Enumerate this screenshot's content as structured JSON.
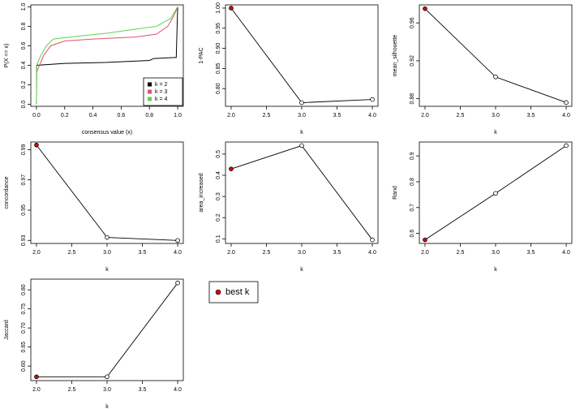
{
  "chart_data": [
    {
      "type": "ecdf",
      "x_label": "consensus value (x)",
      "y_label": "P(X <= x)",
      "xlim": [
        -0.04,
        1.04
      ],
      "ylim": [
        -0.02,
        1.02
      ],
      "xticks": [
        {
          "value": 0,
          "label": "0.0"
        },
        0.2,
        0.4,
        0.6,
        0.8,
        {
          "value": 1,
          "label": "1.0"
        }
      ],
      "yticks": [
        {
          "value": 0,
          "label": "0.0"
        },
        0.2,
        0.4,
        0.6,
        0.8,
        {
          "value": 1,
          "label": "1.0"
        }
      ],
      "legend": "bottomright",
      "series": [
        {
          "name": "k = 2",
          "color": "#000000",
          "x": [
            0,
            0.001,
            0.2,
            0.5,
            0.8,
            0.83,
            0.98,
            0.99,
            1
          ],
          "values": [
            0,
            0.4,
            0.42,
            0.43,
            0.45,
            0.47,
            0.48,
            0.48,
            1
          ]
        },
        {
          "name": "k = 3",
          "color": "#df536b",
          "x": [
            0,
            0.001,
            0.05,
            0.1,
            0.2,
            0.4,
            0.7,
            0.85,
            0.93,
            0.97,
            1
          ],
          "values": [
            0,
            0.33,
            0.5,
            0.6,
            0.65,
            0.67,
            0.69,
            0.72,
            0.8,
            0.9,
            1
          ]
        },
        {
          "name": "k = 4",
          "color": "#61d04f",
          "x": [
            0,
            0.001,
            0.03,
            0.07,
            0.12,
            0.3,
            0.5,
            0.7,
            0.85,
            0.95,
            1
          ],
          "values": [
            0,
            0.4,
            0.5,
            0.6,
            0.67,
            0.7,
            0.73,
            0.77,
            0.8,
            0.88,
            1
          ]
        }
      ]
    },
    {
      "type": "line",
      "x_label": "k",
      "y_label": "1-PAC",
      "x": [
        2,
        3,
        4
      ],
      "values": [
        1.0,
        0.765,
        0.773
      ],
      "marker_colors": [
        "#dd0000",
        "#ffffff",
        "#ffffff"
      ],
      "xlim": [
        1.92,
        4.08
      ],
      "ylim": [
        0.756,
        1.008
      ],
      "xticks": [
        {
          "value": 2,
          "label": "2.0"
        },
        2.5,
        {
          "value": 3,
          "label": "3.0"
        },
        3.5,
        {
          "value": 4,
          "label": "4.0"
        }
      ],
      "yticks": [
        {
          "value": 0.8,
          "label": "0.80"
        },
        0.85,
        {
          "value": 0.9,
          "label": "0.90"
        },
        0.95,
        {
          "value": 1,
          "label": "1.00"
        }
      ]
    },
    {
      "type": "line",
      "x_label": "k",
      "y_label": "mean_silhouette",
      "x": [
        2,
        3,
        4
      ],
      "values": [
        0.975,
        0.903,
        0.876
      ],
      "marker_colors": [
        "#dd0000",
        "#ffffff",
        "#ffffff"
      ],
      "xlim": [
        1.92,
        4.08
      ],
      "ylim": [
        0.872,
        0.979
      ],
      "xticks": [
        {
          "value": 2,
          "label": "2.0"
        },
        2.5,
        {
          "value": 3,
          "label": "3.0"
        },
        3.5,
        {
          "value": 4,
          "label": "4.0"
        }
      ],
      "yticks": [
        0.88,
        0.92,
        0.96
      ]
    },
    {
      "type": "line",
      "x_label": "k",
      "y_label": "concordance",
      "x": [
        2,
        3,
        4
      ],
      "values": [
        0.993,
        0.932,
        0.93
      ],
      "marker_colors": [
        "#dd0000",
        "#ffffff",
        "#ffffff"
      ],
      "xlim": [
        1.92,
        4.08
      ],
      "ylim": [
        0.928,
        0.995
      ],
      "xticks": [
        {
          "value": 2,
          "label": "2.0"
        },
        2.5,
        {
          "value": 3,
          "label": "3.0"
        },
        3.5,
        {
          "value": 4,
          "label": "4.0"
        }
      ],
      "yticks": [
        0.93,
        0.95,
        0.97,
        0.99
      ]
    },
    {
      "type": "line",
      "x_label": "k",
      "y_label": "area_increased",
      "x": [
        2,
        3,
        4
      ],
      "values": [
        0.43,
        0.54,
        0.095
      ],
      "marker_colors": [
        "#dd0000",
        "#ffffff",
        "#ffffff"
      ],
      "xlim": [
        1.92,
        4.08
      ],
      "ylim": [
        0.078,
        0.557
      ],
      "xticks": [
        {
          "value": 2,
          "label": "2.0"
        },
        2.5,
        {
          "value": 3,
          "label": "3.0"
        },
        3.5,
        {
          "value": 4,
          "label": "4.0"
        }
      ],
      "yticks": [
        0.1,
        0.2,
        0.3,
        0.4,
        0.5
      ]
    },
    {
      "type": "line",
      "x_label": "k",
      "y_label": "Rand",
      "x": [
        2,
        3,
        4
      ],
      "values": [
        0.575,
        0.755,
        0.94
      ],
      "marker_colors": [
        "#dd0000",
        "#ffffff",
        "#ffffff"
      ],
      "xlim": [
        1.92,
        4.08
      ],
      "ylim": [
        0.561,
        0.954
      ],
      "xticks": [
        {
          "value": 2,
          "label": "2.0"
        },
        2.5,
        {
          "value": 3,
          "label": "3.0"
        },
        3.5,
        {
          "value": 4,
          "label": "4.0"
        }
      ],
      "yticks": [
        0.6,
        0.7,
        0.8,
        0.9
      ]
    },
    {
      "type": "line",
      "x_label": "k",
      "y_label": "Jaccard",
      "x": [
        2,
        3,
        4
      ],
      "values": [
        0.572,
        0.572,
        0.818
      ],
      "marker_colors": [
        "#dd0000",
        "#ffffff",
        "#ffffff"
      ],
      "xlim": [
        1.92,
        4.08
      ],
      "ylim": [
        0.562,
        0.828
      ],
      "xticks": [
        {
          "value": 2,
          "label": "2.0"
        },
        2.5,
        {
          "value": 3,
          "label": "3.0"
        },
        3.5,
        {
          "value": 4,
          "label": "4.0"
        }
      ],
      "yticks": [
        {
          "value": 0.6,
          "label": "0.60"
        },
        0.65,
        {
          "value": 0.7,
          "label": "0.70"
        },
        0.75,
        {
          "value": 0.8,
          "label": "0.80"
        }
      ]
    }
  ],
  "best_k_legend": {
    "label": "best k",
    "color": "#dd0000"
  }
}
